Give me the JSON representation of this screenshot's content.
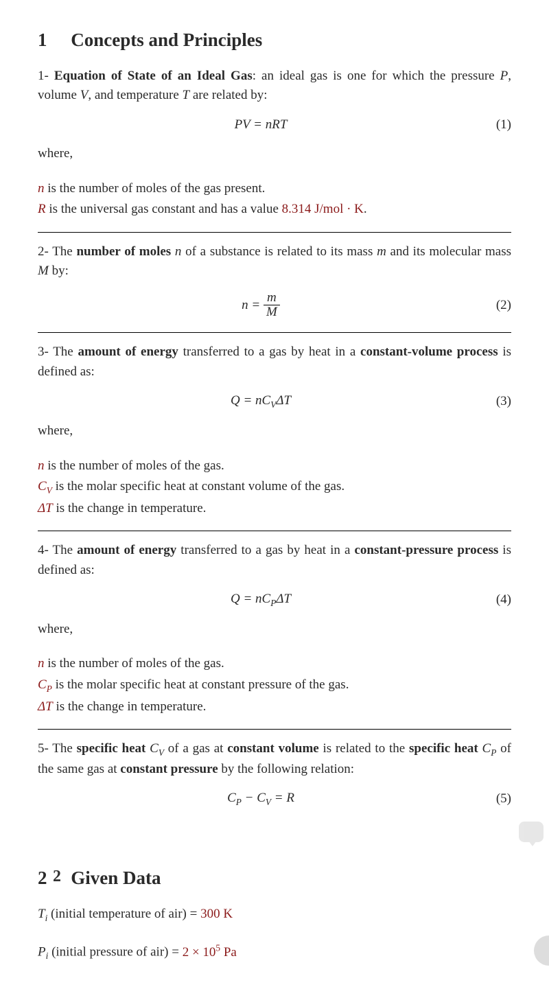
{
  "colors": {
    "background": "#f5f5f5",
    "page": "#ffffff",
    "text": "#2a2a2a",
    "accent": "#8b1a1a"
  },
  "typography": {
    "body_fontsize": 19,
    "heading_fontsize": 27,
    "font_family": "Computer Modern serif"
  },
  "section1": {
    "number": "1",
    "title": "Concepts and Principles",
    "items": [
      {
        "prefix": "1- ",
        "bold_lead": "Equation of State of an Ideal Gas",
        "text_after_bold": ": an ideal gas is one for which the pressure ",
        "var1": "P",
        "text2": ", volume ",
        "var2": "V",
        "text3": ", and temperature ",
        "var3": "T",
        "text4": " are related by:",
        "equation": "PV = nRT",
        "eq_num": "(1)",
        "where": "where,",
        "defs": [
          {
            "sym": "n",
            "rest": " is the number of moles of the gas present."
          },
          {
            "sym": "R",
            "rest": " is the universal gas constant and has a value ",
            "value": "8.314 J/mol · K",
            "tail": "."
          }
        ]
      },
      {
        "prefix": "2- The ",
        "bold_lead": "number of moles",
        "mid_var": " n ",
        "text_after": "of a substance is related to its mass ",
        "var_m": "m",
        "text2": " and its molecular mass ",
        "var_M": "M",
        "text3": " by:",
        "eq_lhs": "n = ",
        "frac_num": "m",
        "frac_den": "M",
        "eq_num": "(2)"
      },
      {
        "prefix": "3- The ",
        "bold1": "amount of energy",
        "mid": " transferred to a gas by heat in a ",
        "bold2": "constant-volume process",
        "tail": " is defined as:",
        "equation_lhs": "Q = nC",
        "equation_sub": "V",
        "equation_rhs": "ΔT",
        "eq_num": "(3)",
        "where": "where,",
        "defs": [
          {
            "sym": "n",
            "rest": " is the number of moles of the gas."
          },
          {
            "sym": "C",
            "sub": "V",
            "rest": " is the molar specific heat at constant volume of the gas."
          },
          {
            "sym": "ΔT",
            "rest": " is the change in temperature."
          }
        ]
      },
      {
        "prefix": "4- The ",
        "bold1": "amount of energy",
        "mid": " transferred to a gas by heat in a ",
        "bold2": "constant-pressure process",
        "tail": " is defined as:",
        "equation_lhs": "Q = nC",
        "equation_sub": "P",
        "equation_rhs": "ΔT",
        "eq_num": "(4)",
        "where": "where,",
        "defs": [
          {
            "sym": "n",
            "rest": " is the number of moles of the gas."
          },
          {
            "sym": "C",
            "sub": "P",
            "rest": " is the molar specific heat at constant pressure of the gas."
          },
          {
            "sym": "ΔT",
            "rest": " is the change in temperature."
          }
        ]
      },
      {
        "prefix": "5- The ",
        "bold1": "specific heat",
        "var_cv": " C",
        "sub_v": "V",
        "mid1": " of a gas at ",
        "bold2": "constant volume",
        "mid2": " is related to the ",
        "bold3": "specific heat",
        "var_cp": " C",
        "sub_p": "P",
        "mid3": " of the same gas at ",
        "bold4": "constant pressure",
        "tail": " by the following relation:",
        "equation": "C",
        "eq_sub1": "P",
        "eq_mid": " − C",
        "eq_sub2": "V",
        "eq_rhs": " = R",
        "eq_num": "(5)"
      }
    ]
  },
  "step2_label": "2",
  "section2": {
    "number": "2",
    "title": "Given Data",
    "lines": [
      {
        "sym": "T",
        "sub": "i",
        "desc": " (initial temperature of air) = ",
        "value": "300 K"
      },
      {
        "sym": "P",
        "sub": "i",
        "desc": " (initial pressure of air) = ",
        "value": "2 × 10",
        "sup": "5",
        "unit": " Pa"
      }
    ]
  }
}
